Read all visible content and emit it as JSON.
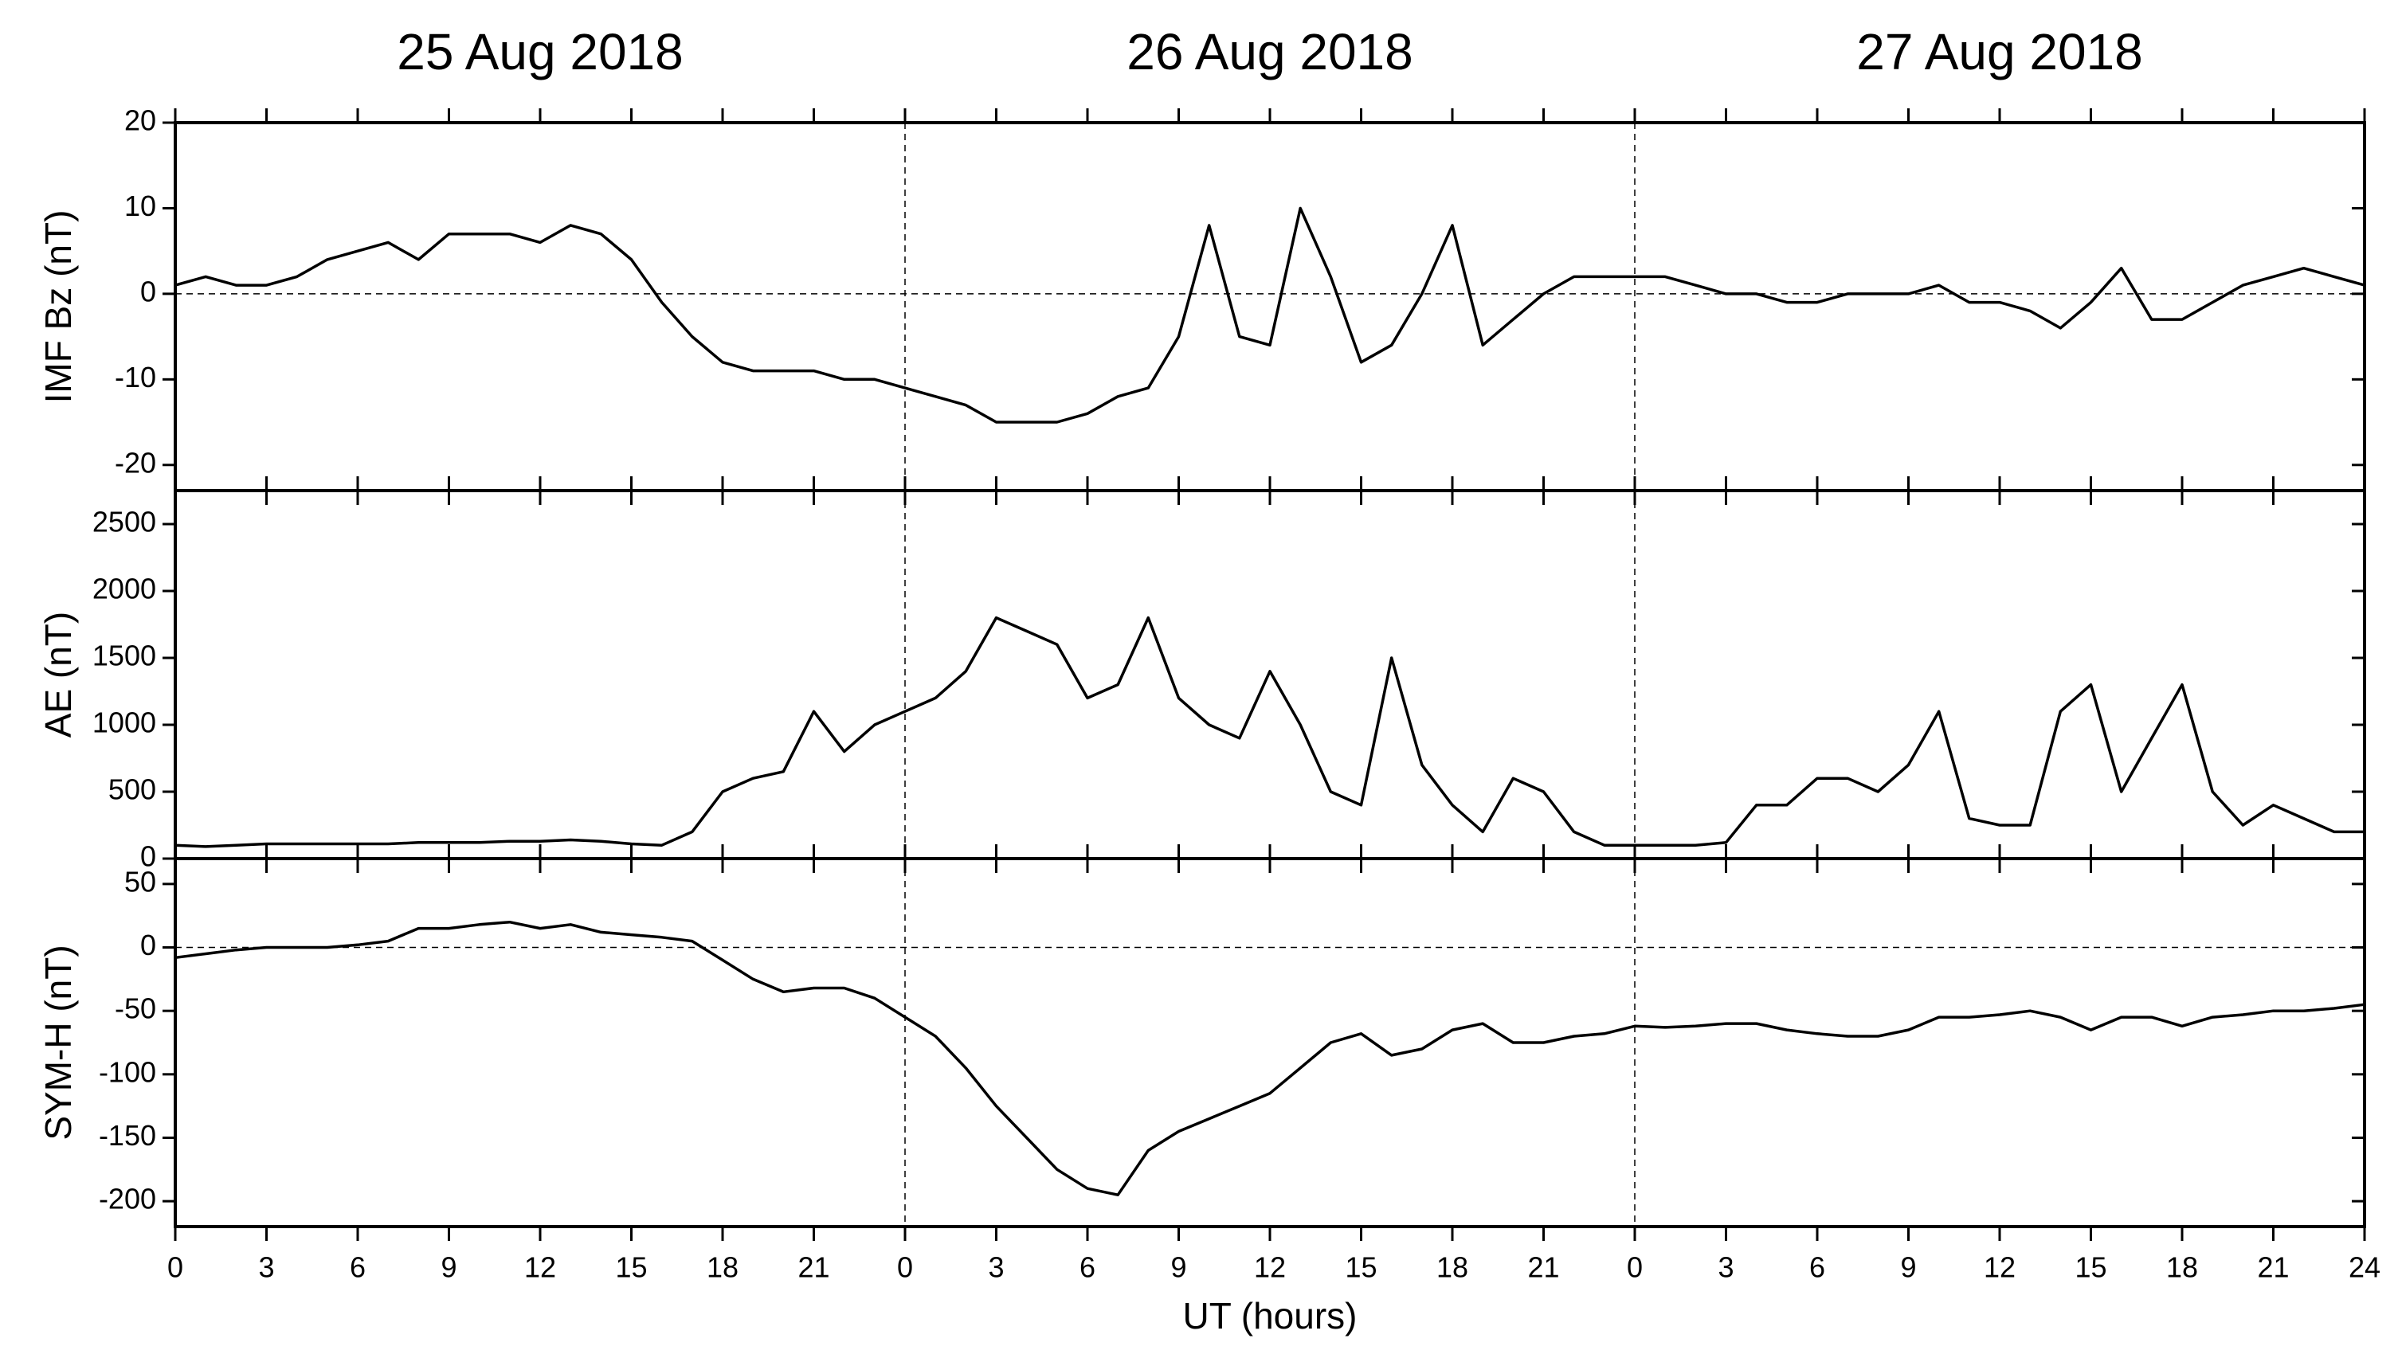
{
  "chart_data": {
    "type": "line",
    "dates": [
      "25 Aug 2018",
      "26 Aug 2018",
      "27 Aug 2018"
    ],
    "xlabel": "UT (hours)",
    "xlim": [
      0,
      72
    ],
    "xticks": [
      0,
      3,
      6,
      9,
      12,
      15,
      18,
      21,
      {
        "value": 24,
        "label": "0"
      },
      {
        "value": 27,
        "label": "3"
      },
      {
        "value": 30,
        "label": "6"
      },
      {
        "value": 33,
        "label": "9"
      },
      {
        "value": 36,
        "label": "12"
      },
      {
        "value": 39,
        "label": "15"
      },
      {
        "value": 42,
        "label": "18"
      },
      {
        "value": 45,
        "label": "21"
      },
      {
        "value": 48,
        "label": "0"
      },
      {
        "value": 51,
        "label": "3"
      },
      {
        "value": 54,
        "label": "6"
      },
      {
        "value": 57,
        "label": "9"
      },
      {
        "value": 60,
        "label": "12"
      },
      {
        "value": 63,
        "label": "15"
      },
      {
        "value": 66,
        "label": "18"
      },
      {
        "value": 69,
        "label": "21"
      },
      {
        "value": 72,
        "label": "24"
      }
    ],
    "x": [
      0,
      1,
      2,
      3,
      4,
      5,
      6,
      7,
      8,
      9,
      10,
      11,
      12,
      13,
      14,
      15,
      16,
      17,
      18,
      19,
      20,
      21,
      22,
      23,
      24,
      25,
      26,
      27,
      28,
      29,
      30,
      31,
      32,
      33,
      34,
      35,
      36,
      37,
      38,
      39,
      40,
      41,
      42,
      43,
      44,
      45,
      46,
      47,
      48,
      49,
      50,
      51,
      52,
      53,
      54,
      55,
      56,
      57,
      58,
      59,
      60,
      61,
      62,
      63,
      64,
      65,
      66,
      67,
      68,
      69,
      70,
      71,
      72
    ],
    "panels": [
      {
        "ylabel": "IMF Bz (nT)",
        "ylim": [
          -23,
          20
        ],
        "yticks": [
          -20,
          -10,
          0,
          10,
          20
        ],
        "zero_line": true,
        "color": "#000000",
        "values": [
          1,
          2,
          1,
          1,
          2,
          4,
          5,
          6,
          4,
          7,
          7,
          7,
          6,
          8,
          7,
          4,
          -1,
          -5,
          -8,
          -9,
          -9,
          -9,
          -10,
          -10,
          -11,
          -12,
          -13,
          -15,
          -15,
          -15,
          -14,
          -12,
          -11,
          -5,
          8,
          -5,
          -6,
          10,
          2,
          -8,
          -6,
          0,
          8,
          -6,
          -3,
          0,
          2,
          2,
          2,
          2,
          1,
          0,
          0,
          -1,
          -1,
          0,
          0,
          0,
          1,
          -1,
          -1,
          -2,
          -4,
          -1,
          3,
          -3,
          -3,
          -1,
          1,
          2,
          3,
          2,
          1
        ]
      },
      {
        "ylabel": "AE (nT)",
        "ylim": [
          0,
          2750
        ],
        "yticks": [
          0,
          500,
          1000,
          1500,
          2000,
          2500
        ],
        "zero_line": false,
        "color": "#000000",
        "values": [
          100,
          90,
          100,
          110,
          110,
          110,
          110,
          110,
          120,
          120,
          120,
          130,
          130,
          140,
          130,
          110,
          100,
          200,
          500,
          600,
          650,
          1100,
          800,
          1000,
          1100,
          1200,
          1400,
          1800,
          1700,
          1600,
          1200,
          1300,
          1800,
          1200,
          1000,
          900,
          1400,
          1000,
          500,
          400,
          1500,
          700,
          400,
          200,
          600,
          500,
          200,
          100,
          100,
          100,
          100,
          120,
          400,
          400,
          600,
          600,
          500,
          700,
          1100,
          300,
          250,
          250,
          1100,
          1300,
          500,
          900,
          1300,
          500,
          250,
          400,
          300,
          200,
          200
        ]
      },
      {
        "ylabel": "SYM-H (nT)",
        "ylim": [
          -220,
          70
        ],
        "yticks": [
          -200,
          -150,
          -100,
          -50,
          0,
          50
        ],
        "zero_line": true,
        "color": "#000000",
        "values": [
          -8,
          -5,
          -2,
          0,
          0,
          0,
          2,
          5,
          15,
          15,
          18,
          20,
          15,
          18,
          12,
          10,
          8,
          5,
          -10,
          -25,
          -35,
          -32,
          -32,
          -40,
          -55,
          -70,
          -95,
          -125,
          -150,
          -175,
          -190,
          -195,
          -160,
          -145,
          -135,
          -125,
          -115,
          -95,
          -75,
          -68,
          -85,
          -80,
          -65,
          -60,
          -75,
          -75,
          -70,
          -68,
          -62,
          -63,
          -62,
          -60,
          -60,
          -65,
          -68,
          -70,
          -70,
          -65,
          -55,
          -55,
          -53,
          -50,
          -55,
          -65,
          -55,
          -55,
          -62,
          -55,
          -53,
          -50,
          -50,
          -48,
          -45
        ]
      }
    ]
  }
}
